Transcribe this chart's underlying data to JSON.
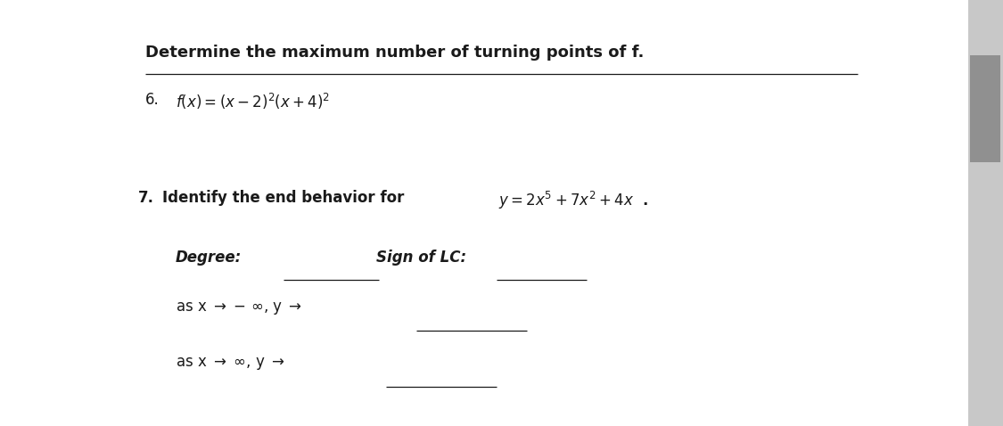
{
  "bg_color": "#e8e8e8",
  "panel_color": "#ffffff",
  "text_color": "#1a1a1a",
  "title_text": "Determine the maximum number of turning points of f.",
  "item6_number": "6.",
  "item7_number": "7.",
  "underline_color": "#1a1a1a",
  "title_fontsize": 13,
  "body_fontsize": 12,
  "formula_fontsize": 12
}
